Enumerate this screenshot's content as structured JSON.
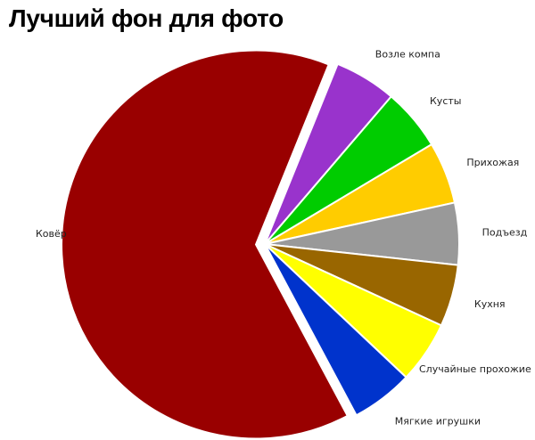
{
  "chart_data": {
    "type": "pie",
    "title": "Лучший фон для фото",
    "legend": "none",
    "slices": [
      {
        "label": "Ковёр",
        "value": 62,
        "color": "#990000",
        "exploded": true
      },
      {
        "label": "Возле компа",
        "value": 5,
        "color": "#9933cc",
        "exploded": false
      },
      {
        "label": "Кусты",
        "value": 5,
        "color": "#00cc00",
        "exploded": false
      },
      {
        "label": "Прихожая",
        "value": 5,
        "color": "#ffcc00",
        "exploded": false
      },
      {
        "label": "Подъезд",
        "value": 5,
        "color": "#999999",
        "exploded": false
      },
      {
        "label": "Кухня",
        "value": 5,
        "color": "#996600",
        "exploded": false
      },
      {
        "label": "Случайные прохожие",
        "value": 5,
        "color": "#ffff00",
        "exploded": false
      },
      {
        "label": "Мягкие игрушки",
        "value": 5,
        "color": "#0033cc",
        "exploded": false
      }
    ]
  }
}
